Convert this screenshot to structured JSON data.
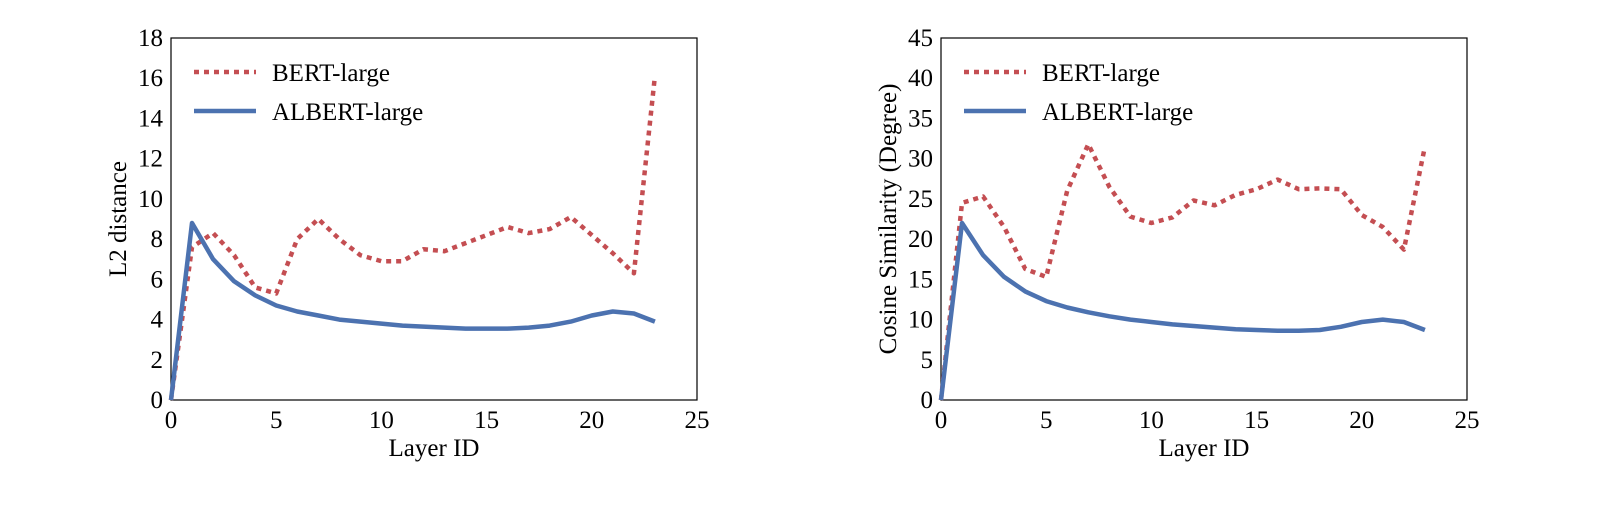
{
  "chart_data": [
    {
      "type": "line",
      "xlabel": "Layer ID",
      "ylabel": "L2 distance",
      "xlim": [
        0,
        25
      ],
      "ylim": [
        0,
        18
      ],
      "xticks": [
        0,
        5,
        10,
        15,
        20,
        25
      ],
      "yticks": [
        0,
        2,
        4,
        6,
        8,
        10,
        12,
        14,
        16,
        18
      ],
      "grid": false,
      "legend": "top-left",
      "series": [
        {
          "name": "BERT-large",
          "style": "dotted",
          "color": "#c44e52",
          "x": [
            0,
            1,
            2,
            3,
            4,
            5,
            6,
            7,
            8,
            9,
            10,
            11,
            12,
            13,
            14,
            15,
            16,
            17,
            18,
            19,
            20,
            21,
            22,
            23
          ],
          "values": [
            0,
            7.6,
            8.3,
            7.2,
            5.6,
            5.3,
            8.0,
            9.0,
            8.0,
            7.2,
            6.9,
            6.9,
            7.5,
            7.4,
            7.8,
            8.2,
            8.6,
            8.3,
            8.5,
            9.1,
            8.2,
            7.3,
            6.3,
            16.1
          ]
        },
        {
          "name": "ALBERT-large",
          "style": "solid",
          "color": "#4c72b0",
          "x": [
            0,
            1,
            2,
            3,
            4,
            5,
            6,
            7,
            8,
            9,
            10,
            11,
            12,
            13,
            14,
            15,
            16,
            17,
            18,
            19,
            20,
            21,
            22,
            23
          ],
          "values": [
            0,
            8.8,
            7.0,
            5.9,
            5.2,
            4.7,
            4.4,
            4.2,
            4.0,
            3.9,
            3.8,
            3.7,
            3.65,
            3.6,
            3.55,
            3.55,
            3.55,
            3.6,
            3.7,
            3.9,
            4.2,
            4.4,
            4.3,
            3.9
          ]
        }
      ]
    },
    {
      "type": "line",
      "xlabel": "Layer ID",
      "ylabel": "Cosine Similarity (Degree)",
      "xlim": [
        0,
        25
      ],
      "ylim": [
        0,
        45
      ],
      "xticks": [
        0,
        5,
        10,
        15,
        20,
        25
      ],
      "yticks": [
        0,
        5,
        10,
        15,
        20,
        25,
        30,
        35,
        40,
        45
      ],
      "grid": false,
      "legend": "top-left",
      "series": [
        {
          "name": "BERT-large",
          "style": "dotted",
          "color": "#c44e52",
          "x": [
            0,
            1,
            2,
            3,
            4,
            5,
            6,
            7,
            8,
            9,
            10,
            11,
            12,
            13,
            14,
            15,
            16,
            17,
            18,
            19,
            20,
            21,
            22,
            23
          ],
          "values": [
            0,
            24.5,
            25.3,
            21.5,
            16.3,
            15.3,
            26.0,
            31.8,
            26.5,
            22.8,
            22.0,
            22.7,
            24.8,
            24.2,
            25.5,
            26.2,
            27.4,
            26.2,
            26.3,
            26.2,
            23.0,
            21.5,
            18.7,
            31.5
          ]
        },
        {
          "name": "ALBERT-large",
          "style": "solid",
          "color": "#4c72b0",
          "x": [
            0,
            1,
            2,
            3,
            4,
            5,
            6,
            7,
            8,
            9,
            10,
            11,
            12,
            13,
            14,
            15,
            16,
            17,
            18,
            19,
            20,
            21,
            22,
            23
          ],
          "values": [
            0,
            22.0,
            18.0,
            15.3,
            13.5,
            12.3,
            11.5,
            10.9,
            10.4,
            10.0,
            9.7,
            9.4,
            9.2,
            9.0,
            8.8,
            8.7,
            8.6,
            8.6,
            8.7,
            9.1,
            9.7,
            10.0,
            9.7,
            8.7
          ]
        }
      ]
    }
  ]
}
